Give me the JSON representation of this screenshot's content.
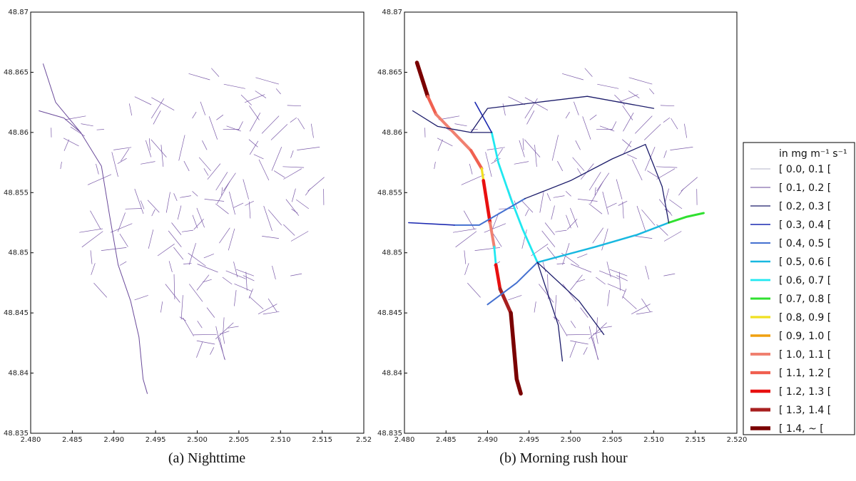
{
  "chart_data": [
    {
      "type": "line",
      "panel": "a",
      "caption": "(a) Nighttime",
      "x_ticks": [
        "2.480",
        "2.485",
        "2.490",
        "2.495",
        "2.500",
        "2.505",
        "2.510",
        "2.515",
        "2.52"
      ],
      "y_ticks": [
        "48.835",
        "48.84",
        "48.845",
        "48.85",
        "48.855",
        "48.86",
        "48.865",
        "48.87"
      ],
      "xlim": [
        2.48,
        2.52
      ],
      "ylim": [
        48.835,
        48.87
      ],
      "series": [
        {
          "class": 1,
          "points": [
            [
              2.4815,
              48.8657
            ],
            [
              2.483,
              48.8625
            ],
            [
              2.486,
              48.86
            ],
            [
              2.4885,
              48.8572
            ],
            [
              2.4895,
              48.853
            ],
            [
              2.4905,
              48.849
            ],
            [
              2.492,
              48.846
            ],
            [
              2.493,
              48.843
            ],
            [
              2.4935,
              48.8395
            ],
            [
              2.494,
              48.8383
            ]
          ]
        },
        {
          "class": 1,
          "points": [
            [
              2.481,
              48.8618
            ],
            [
              2.484,
              48.8612
            ],
            [
              2.486,
              48.86
            ]
          ]
        }
      ]
    },
    {
      "type": "line",
      "panel": "b",
      "caption": "(b) Morning rush hour",
      "x_ticks": [
        "2.480",
        "2.485",
        "2.490",
        "2.495",
        "2.500",
        "2.505",
        "2.510",
        "2.515",
        "2.520"
      ],
      "y_ticks": [
        "48.835",
        "48.84",
        "48.845",
        "48.85",
        "48.855",
        "48.86",
        "48.865",
        "48.87"
      ],
      "xlim": [
        2.48,
        2.52
      ],
      "ylim": [
        48.835,
        48.87
      ],
      "legend": {
        "title": "in mg m⁻¹ s⁻¹",
        "position": "right",
        "entries": [
          {
            "label": "[ 0.0, 0.1 [",
            "color": "#9a9ab8",
            "width": 0.8
          },
          {
            "label": "[ 0.1, 0.2 [",
            "color": "#6a4a9a",
            "width": 1.0
          },
          {
            "label": "[ 0.2, 0.3 [",
            "color": "#1c1c6a",
            "width": 1.3
          },
          {
            "label": "[ 0.3, 0.4 [",
            "color": "#1a28b0",
            "width": 1.6
          },
          {
            "label": "[ 0.4, 0.5 [",
            "color": "#4470d0",
            "width": 2.0
          },
          {
            "label": "[ 0.5, 0.6 [",
            "color": "#18b8e0",
            "width": 2.5
          },
          {
            "label": "[ 0.6, 0.7 [",
            "color": "#20e8f0",
            "width": 2.8
          },
          {
            "label": "[ 0.7, 0.8 [",
            "color": "#30e030",
            "width": 3.0
          },
          {
            "label": "[ 0.8, 0.9 [",
            "color": "#f0e020",
            "width": 3.2
          },
          {
            "label": "[ 0.9, 1.0 [",
            "color": "#f0a010",
            "width": 3.5
          },
          {
            "label": "[ 1.0, 1.1 [",
            "color": "#f08070",
            "width": 4.0
          },
          {
            "label": "[ 1.1, 1.2 [",
            "color": "#f06050",
            "width": 4.3
          },
          {
            "label": "[ 1.2, 1.3 [",
            "color": "#e81010",
            "width": 4.6
          },
          {
            "label": "[ 1.3, 1.4 [",
            "color": "#a82020",
            "width": 5.0
          },
          {
            "label": "[ 1.4, ~ [",
            "color": "#7a0000",
            "width": 5.5
          }
        ]
      },
      "series": [
        {
          "class": 14,
          "points": [
            [
              2.4815,
              48.8658
            ],
            [
              2.4828,
              48.863
            ]
          ]
        },
        {
          "class": 11,
          "points": [
            [
              2.4828,
              48.863
            ],
            [
              2.4838,
              48.8615
            ]
          ]
        },
        {
          "class": 10,
          "points": [
            [
              2.4838,
              48.8615
            ],
            [
              2.488,
              48.8585
            ]
          ]
        },
        {
          "class": 11,
          "points": [
            [
              2.488,
              48.8585
            ],
            [
              2.4893,
              48.857
            ]
          ]
        },
        {
          "class": 8,
          "points": [
            [
              2.4893,
              48.857
            ],
            [
              2.4895,
              48.856
            ]
          ]
        },
        {
          "class": 12,
          "points": [
            [
              2.4895,
              48.856
            ],
            [
              2.4903,
              48.8525
            ]
          ]
        },
        {
          "class": 10,
          "points": [
            [
              2.4903,
              48.8525
            ],
            [
              2.4908,
              48.8505
            ]
          ]
        },
        {
          "class": 6,
          "points": [
            [
              2.4908,
              48.8505
            ],
            [
              2.491,
              48.849
            ]
          ]
        },
        {
          "class": 12,
          "points": [
            [
              2.491,
              48.849
            ],
            [
              2.4915,
              48.847
            ]
          ]
        },
        {
          "class": 13,
          "points": [
            [
              2.4915,
              48.847
            ],
            [
              2.4928,
              48.845
            ]
          ]
        },
        {
          "class": 14,
          "points": [
            [
              2.4928,
              48.845
            ],
            [
              2.4935,
              48.8395
            ],
            [
              2.494,
              48.8383
            ]
          ]
        },
        {
          "class": 6,
          "points": [
            [
              2.4905,
              48.86
            ],
            [
              2.4913,
              48.8575
            ],
            [
              2.4928,
              48.8545
            ],
            [
              2.4942,
              48.852
            ],
            [
              2.496,
              48.8492
            ]
          ]
        },
        {
          "class": 5,
          "points": [
            [
              2.496,
              48.8492
            ],
            [
              2.503,
              48.8505
            ],
            [
              2.508,
              48.8515
            ],
            [
              2.5118,
              48.8525
            ]
          ]
        },
        {
          "class": 7,
          "points": [
            [
              2.5118,
              48.8525
            ],
            [
              2.514,
              48.853
            ],
            [
              2.516,
              48.8533
            ]
          ]
        },
        {
          "class": 4,
          "points": [
            [
              2.486,
              48.8523
            ],
            [
              2.489,
              48.8523
            ],
            [
              2.492,
              48.8535
            ],
            [
              2.4945,
              48.8545
            ]
          ]
        },
        {
          "class": 4,
          "points": [
            [
              2.496,
              48.8492
            ],
            [
              2.4935,
              48.8475
            ],
            [
              2.49,
              48.8457
            ]
          ]
        },
        {
          "class": 3,
          "points": [
            [
              2.4805,
              48.8525
            ],
            [
              2.486,
              48.8523
            ]
          ]
        },
        {
          "class": 3,
          "points": [
            [
              2.4885,
              48.8625
            ],
            [
              2.4905,
              48.86
            ]
          ]
        },
        {
          "class": 2,
          "points": [
            [
              2.496,
              48.8492
            ],
            [
              2.4985,
              48.844
            ],
            [
              2.499,
              48.841
            ]
          ]
        },
        {
          "class": 2,
          "points": [
            [
              2.496,
              48.8492
            ],
            [
              2.501,
              48.846
            ],
            [
              2.504,
              48.8432
            ]
          ]
        },
        {
          "class": 2,
          "points": [
            [
              2.4945,
              48.8545
            ],
            [
              2.5,
              48.856
            ],
            [
              2.505,
              48.8578
            ],
            [
              2.509,
              48.859
            ]
          ]
        },
        {
          "class": 2,
          "points": [
            [
              2.481,
              48.8618
            ],
            [
              2.484,
              48.8605
            ],
            [
              2.488,
              48.86
            ],
            [
              2.4905,
              48.86
            ]
          ]
        },
        {
          "class": 2,
          "points": [
            [
              2.488,
              48.86
            ],
            [
              2.49,
              48.862
            ],
            [
              2.496,
              48.8625
            ],
            [
              2.502,
              48.863
            ],
            [
              2.51,
              48.862
            ]
          ]
        },
        {
          "class": 2,
          "points": [
            [
              2.509,
              48.859
            ],
            [
              2.511,
              48.8555
            ],
            [
              2.5118,
              48.8525
            ]
          ]
        }
      ]
    }
  ],
  "captions": {
    "a": "(a) Nighttime",
    "b": "(b) Morning rush hour"
  }
}
